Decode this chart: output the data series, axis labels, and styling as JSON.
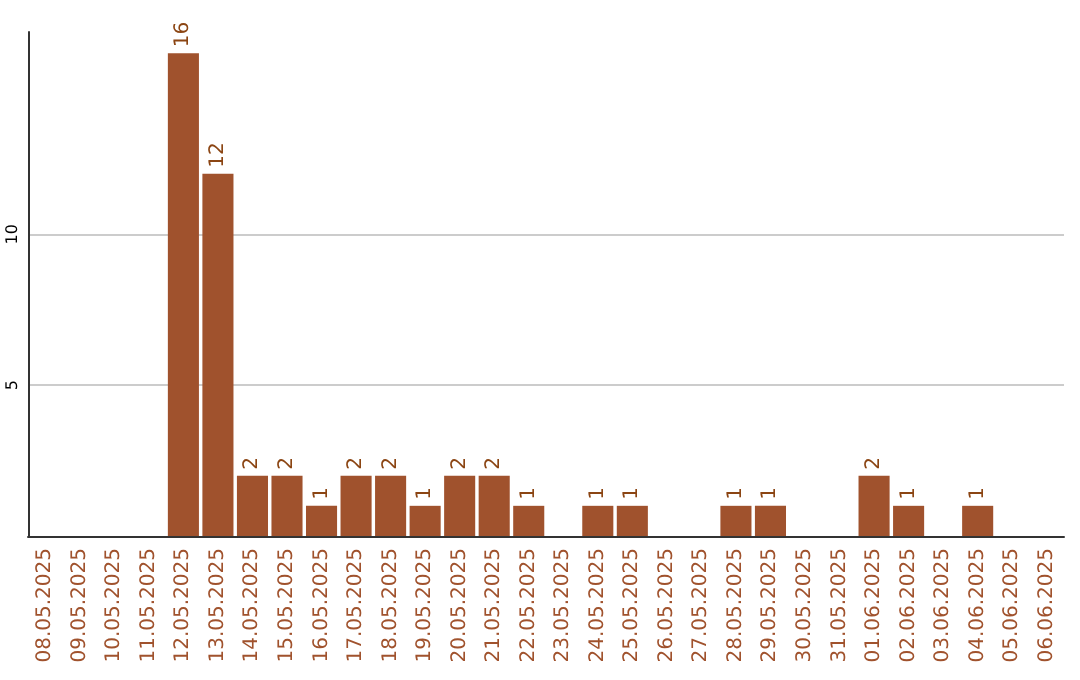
{
  "chart_data": {
    "type": "bar",
    "categories": [
      "08.05.2025",
      "09.05.2025",
      "10.05.2025",
      "11.05.2025",
      "12.05.2025",
      "13.05.2025",
      "14.05.2025",
      "15.05.2025",
      "16.05.2025",
      "17.05.2025",
      "18.05.2025",
      "19.05.2025",
      "20.05.2025",
      "21.05.2025",
      "22.05.2025",
      "23.05.2025",
      "24.05.2025",
      "25.05.2025",
      "26.05.2025",
      "27.05.2025",
      "28.05.2025",
      "29.05.2025",
      "30.05.2025",
      "31.05.2025",
      "01.06.2025",
      "02.06.2025",
      "03.06.2025",
      "04.06.2025",
      "05.06.2025",
      "06.06.2025"
    ],
    "values": [
      0,
      0,
      0,
      0,
      16,
      12,
      2,
      2,
      1,
      2,
      2,
      1,
      2,
      2,
      1,
      0,
      1,
      1,
      0,
      0,
      1,
      1,
      0,
      0,
      2,
      1,
      0,
      1,
      0,
      0
    ],
    "value_labels": [
      null,
      null,
      null,
      null,
      "16",
      "12",
      "2",
      "2",
      "1",
      "2",
      "2",
      "1",
      "2",
      "2",
      "1",
      null,
      "1",
      "1",
      null,
      null,
      "1",
      "1",
      null,
      null,
      "2",
      "1",
      null,
      "1",
      null,
      null
    ],
    "color": "#a0522d",
    "ylim": [
      0,
      16.7
    ],
    "yticks": [
      5,
      10
    ],
    "grid": "y"
  }
}
